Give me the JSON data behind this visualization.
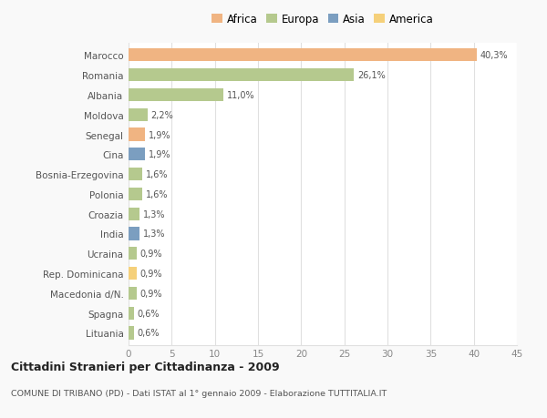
{
  "categories": [
    "Marocco",
    "Romania",
    "Albania",
    "Moldova",
    "Senegal",
    "Cina",
    "Bosnia-Erzegovina",
    "Polonia",
    "Croazia",
    "India",
    "Ucraina",
    "Rep. Dominicana",
    "Macedonia d/N.",
    "Spagna",
    "Lituania"
  ],
  "values": [
    40.3,
    26.1,
    11.0,
    2.2,
    1.9,
    1.9,
    1.6,
    1.6,
    1.3,
    1.3,
    0.9,
    0.9,
    0.9,
    0.6,
    0.6
  ],
  "labels": [
    "40,3%",
    "26,1%",
    "11,0%",
    "2,2%",
    "1,9%",
    "1,9%",
    "1,6%",
    "1,6%",
    "1,3%",
    "1,3%",
    "0,9%",
    "0,9%",
    "0,9%",
    "0,6%",
    "0,6%"
  ],
  "colors": [
    "#f0b482",
    "#b5c98e",
    "#b5c98e",
    "#b5c98e",
    "#f0b482",
    "#7b9ec0",
    "#b5c98e",
    "#b5c98e",
    "#b5c98e",
    "#7b9ec0",
    "#b5c98e",
    "#f5d07a",
    "#b5c98e",
    "#b5c98e",
    "#b5c98e"
  ],
  "continent_labels": [
    "Africa",
    "Europa",
    "Asia",
    "America"
  ],
  "continent_colors": [
    "#f0b482",
    "#b5c98e",
    "#7b9ec0",
    "#f5d07a"
  ],
  "title": "Cittadini Stranieri per Cittadinanza - 2009",
  "subtitle": "COMUNE DI TRIBANO (PD) - Dati ISTAT al 1° gennaio 2009 - Elaborazione TUTTITALIA.IT",
  "xlim": [
    0,
    45
  ],
  "xticks": [
    0,
    5,
    10,
    15,
    20,
    25,
    30,
    35,
    40,
    45
  ],
  "background_color": "#f9f9f9",
  "plot_bg_color": "#ffffff",
  "grid_color": "#e0e0e0",
  "bar_height": 0.65
}
